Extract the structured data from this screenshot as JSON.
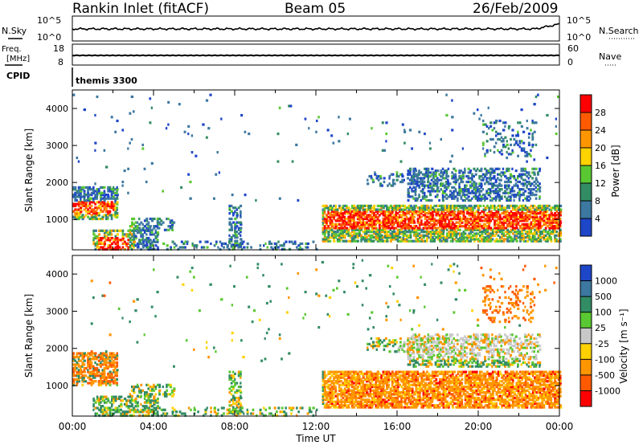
{
  "header": {
    "station": "Rankin Inlet (fitACF)",
    "beam": "Beam 05",
    "date": "26/Feb/2009"
  },
  "noise_panel": {
    "left_label": "N.Sky",
    "right_label": "N.Search",
    "y_top": "10^5",
    "y_bottom": "10^0"
  },
  "freq_panel": {
    "left_label_1": "Freq.",
    "left_label_2": "[MHz]",
    "right_label": "Nave",
    "left_ticks": [
      "18",
      "8"
    ],
    "right_ticks": [
      "60",
      "0"
    ]
  },
  "cpid_panel": {
    "label": "CPID",
    "value": "themis 3300"
  },
  "colors": {
    "red": "#ff0000",
    "orange_red": "#ff5a00",
    "orange": "#ff9600",
    "yellow": "#ffd200",
    "green_light": "#5ac832",
    "green_dark": "#328c64",
    "teal": "#3c78a0",
    "blue": "#1e46c8",
    "gray": "#c8c8c8"
  },
  "chart_data": [
    {
      "type": "heatmap",
      "title": "",
      "xlabel": "Time UT",
      "ylabel": "Slant Range [km]",
      "xlim": [
        "00:00",
        "24:00"
      ],
      "ylim": [
        180,
        4500
      ],
      "x_ticks": [
        "00:00",
        "04:00",
        "08:00",
        "12:00",
        "16:00",
        "20:00",
        "00:00"
      ],
      "y_ticks": [
        "1000",
        "2000",
        "3000",
        "4000"
      ],
      "colorbar": {
        "label": "Power [dB]",
        "ticks": [
          "4",
          "8",
          "12",
          "16",
          "20",
          "24",
          "28"
        ],
        "range": [
          0,
          30
        ]
      }
    },
    {
      "type": "heatmap",
      "title": "",
      "xlabel": "Time UT",
      "ylabel": "Slant Range [km]",
      "xlim": [
        "00:00",
        "24:00"
      ],
      "ylim": [
        180,
        4500
      ],
      "x_ticks": [
        "00:00",
        "04:00",
        "08:00",
        "12:00",
        "16:00",
        "20:00",
        "00:00"
      ],
      "y_ticks": [
        "1000",
        "2000",
        "3000",
        "4000"
      ],
      "colorbar": {
        "label": "Velocity [m s⁻¹]",
        "ticks": [
          "1000",
          "500",
          "100",
          "25",
          "-25",
          "-100",
          "-500",
          "-1000"
        ]
      }
    }
  ]
}
